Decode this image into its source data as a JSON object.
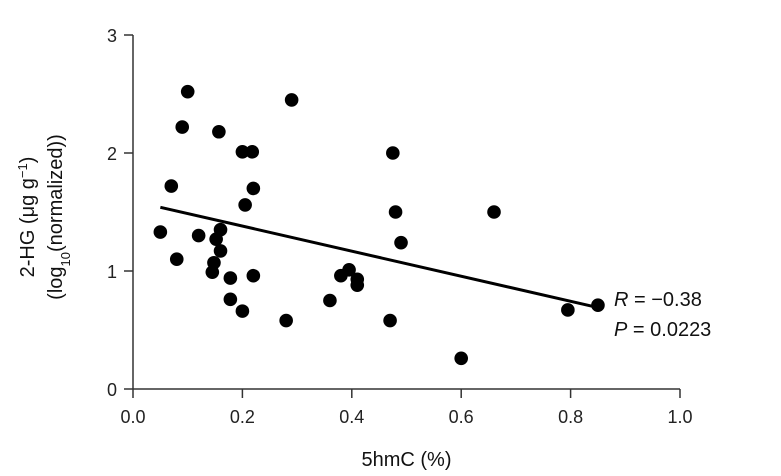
{
  "chart_data": {
    "type": "scatter",
    "xlabel": "5hmC (%)",
    "ylabel_line1": {
      "main": "2-HG (μg g",
      "sup": "−1",
      "close": ")"
    },
    "ylabel_line2": {
      "open": "(log",
      "sub": "10",
      "rest": "(normalized))"
    },
    "xlim": [
      0,
      1.0
    ],
    "ylim": [
      0,
      3
    ],
    "x_ticks": [
      {
        "value": 0.0,
        "label": "0.0"
      },
      {
        "value": 0.2,
        "label": "0.2"
      },
      {
        "value": 0.4,
        "label": "0.4"
      },
      {
        "value": 0.6,
        "label": "0.6"
      },
      {
        "value": 0.8,
        "label": "0.8"
      },
      {
        "value": 1.0,
        "label": "1.0"
      }
    ],
    "y_ticks": [
      {
        "value": 0,
        "label": "0"
      },
      {
        "value": 1,
        "label": "1"
      },
      {
        "value": 2,
        "label": "2"
      },
      {
        "value": 3,
        "label": "3"
      }
    ],
    "grid": false,
    "points": [
      {
        "x": 0.05,
        "y": 1.33
      },
      {
        "x": 0.07,
        "y": 1.72
      },
      {
        "x": 0.08,
        "y": 1.1
      },
      {
        "x": 0.09,
        "y": 2.22
      },
      {
        "x": 0.1,
        "y": 2.52
      },
      {
        "x": 0.12,
        "y": 1.3
      },
      {
        "x": 0.145,
        "y": 0.99
      },
      {
        "x": 0.148,
        "y": 1.07
      },
      {
        "x": 0.152,
        "y": 1.27
      },
      {
        "x": 0.157,
        "y": 2.18
      },
      {
        "x": 0.16,
        "y": 1.35
      },
      {
        "x": 0.16,
        "y": 1.17
      },
      {
        "x": 0.178,
        "y": 0.94
      },
      {
        "x": 0.178,
        "y": 0.76
      },
      {
        "x": 0.2,
        "y": 2.01
      },
      {
        "x": 0.2,
        "y": 0.66
      },
      {
        "x": 0.205,
        "y": 1.56
      },
      {
        "x": 0.218,
        "y": 2.01
      },
      {
        "x": 0.22,
        "y": 1.7
      },
      {
        "x": 0.22,
        "y": 0.96
      },
      {
        "x": 0.28,
        "y": 0.58
      },
      {
        "x": 0.29,
        "y": 2.45
      },
      {
        "x": 0.36,
        "y": 0.75
      },
      {
        "x": 0.38,
        "y": 0.96
      },
      {
        "x": 0.395,
        "y": 1.01
      },
      {
        "x": 0.41,
        "y": 0.93
      },
      {
        "x": 0.41,
        "y": 0.88
      },
      {
        "x": 0.47,
        "y": 0.58
      },
      {
        "x": 0.475,
        "y": 2.0
      },
      {
        "x": 0.48,
        "y": 1.5
      },
      {
        "x": 0.49,
        "y": 1.24
      },
      {
        "x": 0.6,
        "y": 0.26
      },
      {
        "x": 0.66,
        "y": 1.5
      },
      {
        "x": 0.795,
        "y": 0.67
      },
      {
        "x": 0.85,
        "y": 0.71
      }
    ],
    "trend_line": {
      "x1": 0.05,
      "y1": 1.54,
      "x2": 0.85,
      "y2": 0.69
    },
    "annotation": {
      "r_symbol": "R",
      "r_value": " = −0.38",
      "p_symbol": "P",
      "p_value": " = 0.0223"
    },
    "colors": {
      "points": "#000000",
      "line": "#000000",
      "axes": "#333333"
    }
  }
}
